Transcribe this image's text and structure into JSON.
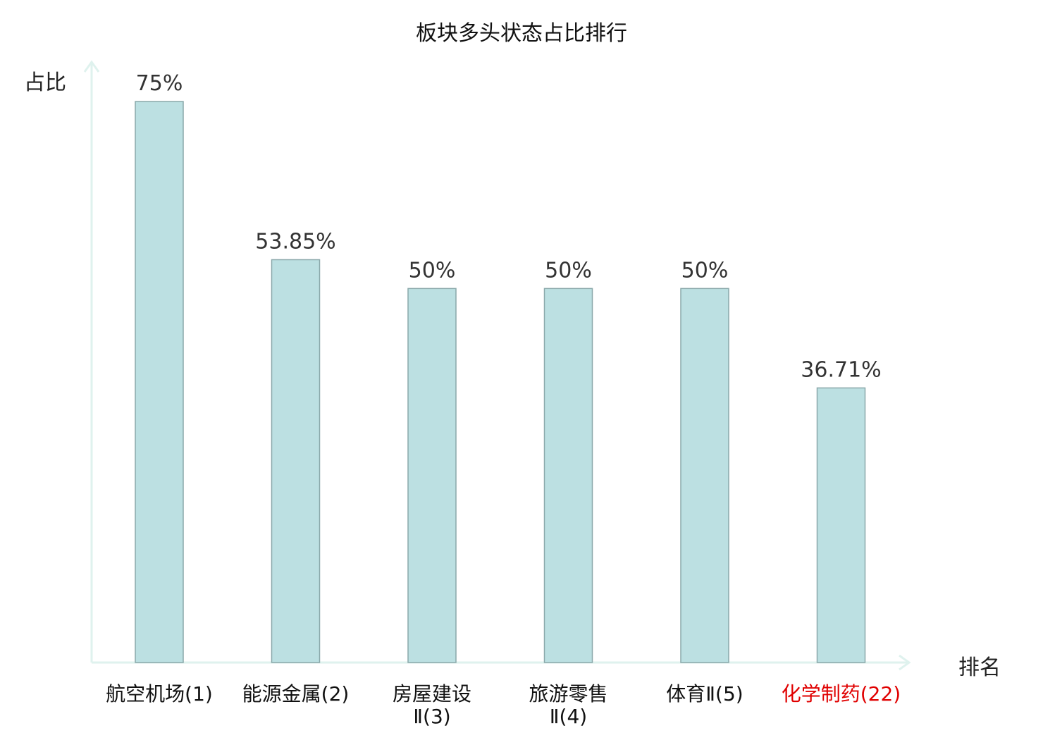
{
  "chart_data": {
    "type": "bar",
    "title": "板块多头状态占比排行",
    "ylabel": "占比",
    "xlabel": "排名",
    "ylim": [
      0,
      75
    ],
    "grid": false,
    "categories": [
      "航空机场(1)",
      "能源金属(2)",
      "房屋建设Ⅱ(3)",
      "旅游零售Ⅱ(4)",
      "体育Ⅱ(5)",
      "化学制药(22)"
    ],
    "category_lines": [
      [
        "航空机场(1)"
      ],
      [
        "能源金属(2)"
      ],
      [
        "房屋建设",
        "Ⅱ(3)"
      ],
      [
        "旅游零售",
        "Ⅱ(4)"
      ],
      [
        "体育Ⅱ(5)"
      ],
      [
        "化学制药(22)"
      ]
    ],
    "values": [
      75,
      53.85,
      50,
      50,
      50,
      36.71
    ],
    "value_labels": [
      "75%",
      "53.85%",
      "50%",
      "50%",
      "50%",
      "36.71%"
    ],
    "highlight_index": 5,
    "colors": {
      "bar_fill": "#bce0e2",
      "bar_stroke": "#8aa8aa",
      "axis": "#dff2ee",
      "label_text": "#333333",
      "tick_text": "#111111",
      "highlight_text": "#e00000"
    }
  }
}
